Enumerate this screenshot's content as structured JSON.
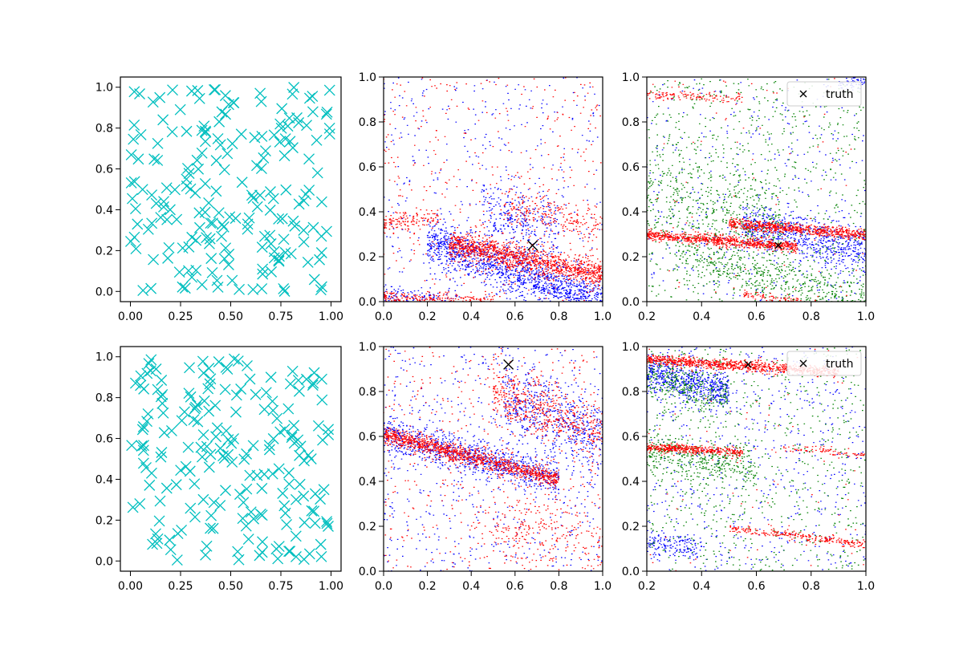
{
  "figure": {
    "background": "#ffffff"
  },
  "chart_data": [
    {
      "panel": "top-left",
      "type": "scatter",
      "marker": "x",
      "color": "#00bfbf",
      "xlim": [
        -0.05,
        1.05
      ],
      "ylim": [
        -0.05,
        1.05
      ],
      "xticks": [
        "0.00",
        "0.25",
        "0.50",
        "0.75",
        "1.00"
      ],
      "yticks": [
        "0.0",
        "0.2",
        "0.4",
        "0.6",
        "0.8",
        "1.0"
      ],
      "point_count": 200,
      "distribution": "uniform"
    },
    {
      "panel": "top-middle",
      "type": "scatter",
      "marker": "dot",
      "xlim": [
        0,
        1
      ],
      "ylim": [
        0,
        1
      ],
      "xticks": [
        "0.0",
        "0.2",
        "0.4",
        "0.6",
        "0.8",
        "1.0"
      ],
      "yticks": [
        "0.0",
        "0.2",
        "0.4",
        "0.6",
        "0.8",
        "1.0"
      ],
      "series": [
        {
          "color": "#0000ff",
          "bands": [
            {
              "x": [
                0.2,
                1.0
              ],
              "y0": 0.34,
              "slope": -0.34,
              "spread": 0.05,
              "n": 1400
            },
            {
              "x": [
                0.45,
                0.8
              ],
              "y0": 0.55,
              "slope": -0.3,
              "spread": 0.08,
              "n": 300
            },
            {
              "x": [
                0.0,
                0.35
              ],
              "y0": 0.02,
              "slope": 0.0,
              "spread": 0.03,
              "n": 150
            }
          ],
          "noise": 400
        },
        {
          "color": "#ff0000",
          "bands": [
            {
              "x": [
                0.3,
                1.0
              ],
              "y0": 0.32,
              "slope": -0.2,
              "spread": 0.03,
              "n": 1200
            },
            {
              "x": [
                0.0,
                0.25
              ],
              "y0": 0.35,
              "slope": 0.1,
              "spread": 0.02,
              "n": 120
            },
            {
              "x": [
                0.0,
                0.5
              ],
              "y0": 0.02,
              "slope": -0.04,
              "spread": 0.015,
              "n": 250
            },
            {
              "x": [
                0.55,
                1.0
              ],
              "y0": 0.5,
              "slope": -0.15,
              "spread": 0.04,
              "n": 200
            }
          ],
          "noise": 450
        }
      ],
      "truth": {
        "x": 0.68,
        "y": 0.25,
        "marker": "x",
        "color": "#000000"
      }
    },
    {
      "panel": "top-right",
      "type": "scatter",
      "marker": "dot",
      "xlim": [
        0.2,
        1.0
      ],
      "ylim": [
        0,
        1
      ],
      "xticks": [
        "0.2",
        "0.4",
        "0.6",
        "0.8",
        "1.0"
      ],
      "yticks": [
        "0.0",
        "0.2",
        "0.4",
        "0.6",
        "0.8",
        "1.0"
      ],
      "series": [
        {
          "color": "#0000ff",
          "bands": [
            {
              "x": [
                0.55,
                1.0
              ],
              "y0": 0.5,
              "slope": -0.28,
              "spread": 0.05,
              "n": 700
            },
            {
              "x": [
                0.9,
                1.0
              ],
              "y0": 0.98,
              "slope": 0.0,
              "spread": 0.015,
              "n": 60
            }
          ],
          "noise": 350
        },
        {
          "color": "#008000",
          "bands": [
            {
              "x": [
                0.3,
                1.0
              ],
              "y0": 0.3,
              "slope": -0.3,
              "spread": 0.05,
              "n": 500
            },
            {
              "x": [
                0.2,
                0.7
              ],
              "y0": 0.55,
              "slope": -0.3,
              "spread": 0.1,
              "n": 400
            }
          ],
          "noise": 800
        },
        {
          "color": "#ff0000",
          "bands": [
            {
              "x": [
                0.2,
                0.75
              ],
              "y0": 0.32,
              "slope": -0.1,
              "spread": 0.012,
              "n": 800
            },
            {
              "x": [
                0.5,
                1.0
              ],
              "y0": 0.4,
              "slope": -0.1,
              "spread": 0.012,
              "n": 700
            },
            {
              "x": [
                0.2,
                0.55
              ],
              "y0": 0.93,
              "slope": -0.04,
              "spread": 0.01,
              "n": 120
            },
            {
              "x": [
                0.55,
                1.0
              ],
              "y0": 0.15,
              "slope": -0.2,
              "spread": 0.01,
              "n": 150
            }
          ],
          "noise": 80
        }
      ],
      "truth": {
        "x": 0.68,
        "y": 0.25,
        "marker": "x",
        "color": "#000000"
      },
      "legend": {
        "label": "truth",
        "location": "upper right"
      }
    },
    {
      "panel": "bottom-left",
      "type": "scatter",
      "marker": "x",
      "color": "#00bfbf",
      "xlim": [
        -0.05,
        1.05
      ],
      "ylim": [
        -0.05,
        1.05
      ],
      "xticks": [
        "0.00",
        "0.25",
        "0.50",
        "0.75",
        "1.00"
      ],
      "yticks": [
        "0.0",
        "0.2",
        "0.4",
        "0.6",
        "0.8",
        "1.0"
      ],
      "point_count": 200,
      "distribution": "uniform"
    },
    {
      "panel": "bottom-middle",
      "type": "scatter",
      "marker": "dot",
      "xlim": [
        0,
        1
      ],
      "ylim": [
        0,
        1
      ],
      "xticks": [
        "0.0",
        "0.2",
        "0.4",
        "0.6",
        "0.8",
        "1.0"
      ],
      "yticks": [
        "0.0",
        "0.2",
        "0.4",
        "0.6",
        "0.8",
        "1.0"
      ],
      "series": [
        {
          "color": "#0000ff",
          "bands": [
            {
              "x": [
                0.0,
                0.8
              ],
              "y0": 0.61,
              "slope": -0.25,
              "spread": 0.04,
              "n": 900
            },
            {
              "x": [
                0.55,
                1.0
              ],
              "y0": 0.95,
              "slope": -0.35,
              "spread": 0.08,
              "n": 500
            }
          ],
          "noise": 600
        },
        {
          "color": "#ff0000",
          "bands": [
            {
              "x": [
                0.0,
                0.8
              ],
              "y0": 0.61,
              "slope": -0.25,
              "spread": 0.02,
              "n": 1100
            },
            {
              "x": [
                0.5,
                1.0
              ],
              "y0": 0.97,
              "slope": -0.35,
              "spread": 0.06,
              "n": 500
            },
            {
              "x": [
                0.5,
                1.0
              ],
              "y0": 0.25,
              "slope": -0.1,
              "spread": 0.08,
              "n": 200
            }
          ],
          "noise": 500
        }
      ],
      "truth": {
        "x": 0.57,
        "y": 0.92,
        "marker": "x",
        "color": "#000000"
      }
    },
    {
      "panel": "bottom-right",
      "type": "scatter",
      "marker": "dot",
      "xlim": [
        0.2,
        1.0
      ],
      "ylim": [
        0,
        1
      ],
      "xticks": [
        "0.2",
        "0.4",
        "0.6",
        "0.8",
        "1.0"
      ],
      "yticks": [
        "0.0",
        "0.2",
        "0.4",
        "0.6",
        "0.8",
        "1.0"
      ],
      "series": [
        {
          "color": "#0000ff",
          "bands": [
            {
              "x": [
                0.2,
                0.5
              ],
              "y0": 0.95,
              "slope": -0.3,
              "spread": 0.04,
              "n": 600
            },
            {
              "x": [
                0.2,
                0.4
              ],
              "y0": 0.15,
              "slope": -0.1,
              "spread": 0.03,
              "n": 150
            }
          ],
          "noise": 600
        },
        {
          "color": "#008000",
          "bands": [
            {
              "x": [
                0.2,
                0.6
              ],
              "y0": 0.58,
              "slope": -0.2,
              "spread": 0.05,
              "n": 400
            },
            {
              "x": [
                0.2,
                0.5
              ],
              "y0": 0.92,
              "slope": -0.3,
              "spread": 0.05,
              "n": 300
            }
          ],
          "noise": 700
        },
        {
          "color": "#ff0000",
          "bands": [
            {
              "x": [
                0.2,
                0.9
              ],
              "y0": 0.96,
              "slope": -0.08,
              "spread": 0.012,
              "n": 900
            },
            {
              "x": [
                0.2,
                0.55
              ],
              "y0": 0.565,
              "slope": -0.06,
              "spread": 0.01,
              "n": 400
            },
            {
              "x": [
                0.5,
                1.0
              ],
              "y0": 0.27,
              "slope": -0.15,
              "spread": 0.01,
              "n": 250
            },
            {
              "x": [
                0.7,
                1.0
              ],
              "y0": 0.62,
              "slope": -0.1,
              "spread": 0.01,
              "n": 80
            }
          ],
          "noise": 80
        }
      ],
      "truth": {
        "x": 0.57,
        "y": 0.92,
        "marker": "x",
        "color": "#000000"
      },
      "legend": {
        "label": "truth",
        "location": "upper right"
      }
    }
  ]
}
